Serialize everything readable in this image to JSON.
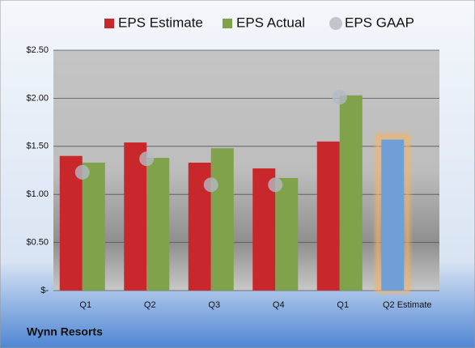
{
  "chart_data": {
    "type": "bar",
    "categories": [
      "Q1",
      "Q2",
      "Q3",
      "Q4",
      "Q1",
      "Q2 Estimate"
    ],
    "series": [
      {
        "name": "EPS Estimate",
        "color": "#c8282b",
        "point_colors": [
          "#c8282b",
          "#c8282b",
          "#c8282b",
          "#c8282b",
          "#c8282b",
          "#6f9fd6"
        ],
        "glow_color": "#f5b264",
        "values": [
          1.4,
          1.54,
          1.33,
          1.27,
          1.55,
          1.57
        ]
      },
      {
        "name": "EPS Actual",
        "color": "#7fa24a",
        "values": [
          1.33,
          1.38,
          1.48,
          1.17,
          2.03,
          null
        ]
      },
      {
        "name": "EPS GAAP",
        "color": "#b4b9c2",
        "marker": "circle",
        "values": [
          1.23,
          1.37,
          1.1,
          1.1,
          2.01,
          null
        ]
      }
    ],
    "ylim": [
      0,
      2.5
    ],
    "yticks": [
      {
        "value": 0,
        "label": "$-"
      },
      {
        "value": 0.5,
        "label": "$0.50"
      },
      {
        "value": 1,
        "label": "$1.00"
      },
      {
        "value": 1.5,
        "label": "$1.50"
      },
      {
        "value": 2,
        "label": "$2.00"
      },
      {
        "value": 2.5,
        "label": "$2.50"
      }
    ],
    "grid": true,
    "footer": "Wynn Resorts"
  }
}
